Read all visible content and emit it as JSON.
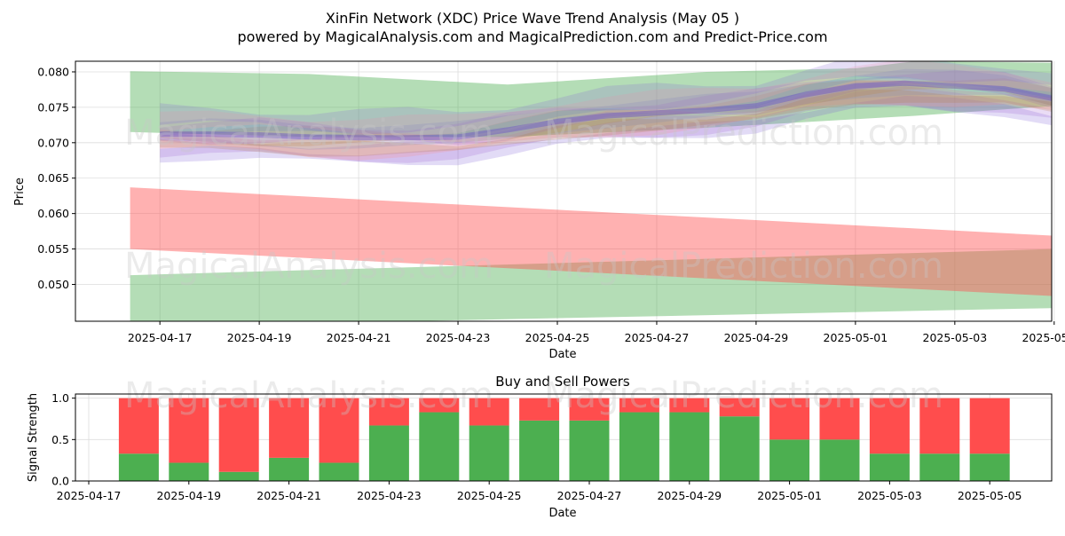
{
  "header": {
    "title": "XinFin Network (XDC) Price Wave Trend Analysis (May 05 )",
    "subtitle": "powered by MagicalAnalysis.com and MagicalPrediction.com and Predict-Price.com"
  },
  "watermarks": [
    "MagicalAnalysis.com",
    "MagicalPrediction.com"
  ],
  "colors": {
    "green_band": "#4caf50",
    "red_band": "#ff5252",
    "buy": "#4caf50",
    "sell": "#ff4d4d"
  },
  "chart_data": [
    {
      "type": "area",
      "title": "",
      "xlabel": "Date",
      "ylabel": "Price",
      "ylim": [
        0.0448,
        0.0815
      ],
      "yticks": [
        "0.050",
        "0.055",
        "0.060",
        "0.065",
        "0.070",
        "0.075",
        "0.080"
      ],
      "xticks": [
        "2025-04-17",
        "2025-04-19",
        "2025-04-21",
        "2025-04-23",
        "2025-04-25",
        "2025-04-27",
        "2025-04-29",
        "2025-05-01",
        "2025-05-03",
        "2025-05-05"
      ],
      "x_range_days": [
        -1.7,
        17.95
      ],
      "bands": [
        {
          "name": "upper green band",
          "color": "green",
          "x": [
            -0.6,
            19.0
          ],
          "upper": [
            0.0801,
            0.0801
          ],
          "lower": [
            0.0715,
            0.0757
          ],
          "notes": "upper edge rises to ~0.0815 near 2025-04-29"
        },
        {
          "name": "lower green band",
          "color": "green",
          "x": [
            -0.6,
            19.0
          ],
          "upper": [
            0.0513,
            0.0552
          ],
          "lower": [
            0.044,
            0.0468
          ]
        },
        {
          "name": "red band",
          "color": "red",
          "x": [
            -0.6,
            19.0
          ],
          "upper": [
            0.0637,
            0.0565
          ],
          "lower": [
            0.055,
            0.048
          ]
        }
      ],
      "series": [
        {
          "name": "wave central path",
          "x": [
            0,
            1,
            2,
            3,
            4,
            5,
            6,
            7,
            8,
            9,
            10,
            11,
            12,
            13,
            14,
            15,
            16,
            17,
            18,
            18.3
          ],
          "values": [
            0.0712,
            0.0712,
            0.0711,
            0.0708,
            0.0707,
            0.0707,
            0.0708,
            0.0718,
            0.073,
            0.0738,
            0.0742,
            0.0746,
            0.0752,
            0.0768,
            0.078,
            0.0784,
            0.078,
            0.0776,
            0.0762,
            0.0752
          ]
        }
      ]
    },
    {
      "type": "bar",
      "title": "Buy and Sell Powers",
      "xlabel": "Date",
      "ylabel": "Signal Strength",
      "ylim": [
        0,
        1.05
      ],
      "yticks": [
        "0.0",
        "0.5",
        "1.0"
      ],
      "xticks": [
        "2025-04-17",
        "2025-04-19",
        "2025-04-21",
        "2025-04-23",
        "2025-04-25",
        "2025-04-27",
        "2025-04-29",
        "2025-05-01",
        "2025-05-03",
        "2025-05-05"
      ],
      "categories": [
        "2025-04-18",
        "2025-04-19",
        "2025-04-20",
        "2025-04-21",
        "2025-04-22",
        "2025-04-23",
        "2025-04-24",
        "2025-04-25",
        "2025-04-26",
        "2025-04-27",
        "2025-04-28",
        "2025-04-29",
        "2025-04-30",
        "2025-05-01",
        "2025-05-02",
        "2025-05-03",
        "2025-05-04",
        "2025-05-05"
      ],
      "series": [
        {
          "name": "Buy",
          "values": [
            0.33,
            0.22,
            0.11,
            0.28,
            0.22,
            0.67,
            0.83,
            0.67,
            0.73,
            0.73,
            0.83,
            0.83,
            0.78,
            0.5,
            0.5,
            0.33,
            0.33,
            0.33
          ]
        },
        {
          "name": "Sell",
          "values": [
            0.67,
            0.78,
            0.89,
            0.72,
            0.78,
            0.33,
            0.17,
            0.33,
            0.27,
            0.27,
            0.17,
            0.17,
            0.22,
            0.5,
            0.5,
            0.67,
            0.67,
            0.67
          ]
        }
      ]
    }
  ]
}
